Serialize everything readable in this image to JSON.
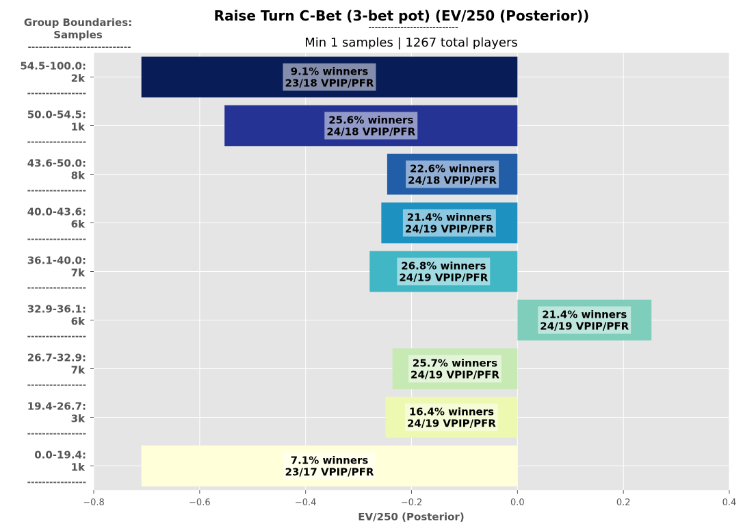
{
  "chart_data": {
    "type": "bar",
    "orientation": "horizontal",
    "title": "Raise Turn C-Bet (3-bet pot) (EV/250 (Posterior))",
    "title_underline": "----------------------------",
    "subtitle": "Min 1 samples | 1267 total players",
    "ylabel_header": [
      "Group Boundaries:",
      "Samples",
      "----------------------------"
    ],
    "xlabel": "EV/250 (Posterior)",
    "xlim": [
      -0.8,
      0.4
    ],
    "xticks": [
      -0.8,
      -0.6,
      -0.4,
      -0.2,
      0.0,
      0.2,
      0.4
    ],
    "xtick_labels": [
      "−0.8",
      "−0.6",
      "−0.4",
      "−0.2",
      "0.0",
      "0.2",
      "0.4"
    ],
    "grid": true,
    "separator": "----------------",
    "categories": [
      {
        "range": "54.5-100.0:",
        "samples": "2k",
        "value": -0.71,
        "winners": "9.1% winners",
        "vpip_pfr": "23/18 VPIP/PFR",
        "color": "#081d58"
      },
      {
        "range": "50.0-54.5:",
        "samples": "1k",
        "value": -0.553,
        "winners": "25.6% winners",
        "vpip_pfr": "24/18 VPIP/PFR",
        "color": "#253494"
      },
      {
        "range": "43.6-50.0:",
        "samples": "8k",
        "value": -0.246,
        "winners": "22.6% winners",
        "vpip_pfr": "24/18 VPIP/PFR",
        "color": "#225ea8"
      },
      {
        "range": "40.0-43.6:",
        "samples": "6k",
        "value": -0.257,
        "winners": "21.4% winners",
        "vpip_pfr": "24/19 VPIP/PFR",
        "color": "#1d91c0"
      },
      {
        "range": "36.1-40.0:",
        "samples": "7k",
        "value": -0.279,
        "winners": "26.8% winners",
        "vpip_pfr": "24/19 VPIP/PFR",
        "color": "#41b6c4"
      },
      {
        "range": "32.9-36.1:",
        "samples": "6k",
        "value": 0.253,
        "winners": "21.4% winners",
        "vpip_pfr": "24/19 VPIP/PFR",
        "color": "#7fcdbb"
      },
      {
        "range": "26.7-32.9:",
        "samples": "7k",
        "value": -0.236,
        "winners": "25.7% winners",
        "vpip_pfr": "24/19 VPIP/PFR",
        "color": "#c7e9b4"
      },
      {
        "range": "19.4-26.7:",
        "samples": "3k",
        "value": -0.249,
        "winners": "16.4% winners",
        "vpip_pfr": "24/19 VPIP/PFR",
        "color": "#edf8b1"
      },
      {
        "range": "0.0-19.4:",
        "samples": "1k",
        "value": -0.71,
        "winners": "7.1% winners",
        "vpip_pfr": "23/17 VPIP/PFR",
        "color": "#ffffd9"
      }
    ],
    "colors": {
      "plot_background": "#e5e5e5",
      "grid": "#ffffff",
      "label_text": "#555555",
      "tick_text": "#555555",
      "title_text": "#000000"
    }
  }
}
